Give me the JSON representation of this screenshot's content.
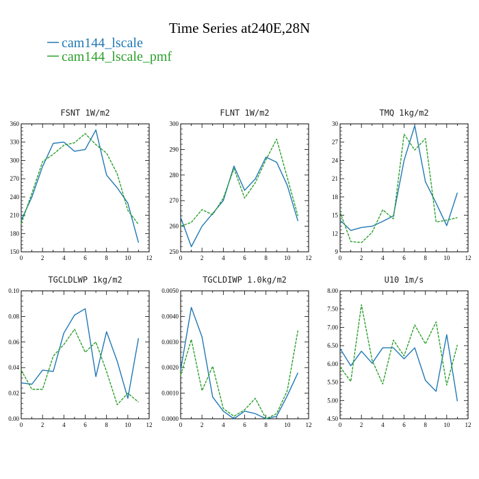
{
  "figure": {
    "title": "Time Series at240E,28N",
    "colors": {
      "cam144_lscale": "#1f77b4",
      "cam144_lscale_pmf": "#2ca02c"
    },
    "legend": [
      {
        "name": "cam144_lscale",
        "color": "#1f77b4",
        "dash": "solid"
      },
      {
        "name": "cam144_lscale_pmf",
        "color": "#2ca02c",
        "dash": "dashed"
      }
    ]
  },
  "chart_data": [
    {
      "type": "line",
      "title": "FSNT   1W/m2",
      "xlim": [
        0,
        12
      ],
      "ylim": [
        150,
        360
      ],
      "xticks": [
        "0",
        "2",
        "4",
        "6",
        "8",
        "10",
        "12"
      ],
      "yticks": [
        "150",
        "180",
        "210",
        "240",
        "270",
        "300",
        "330",
        "360"
      ],
      "x": [
        0,
        1,
        2,
        3,
        4,
        5,
        6,
        7,
        8,
        9,
        10,
        11
      ],
      "series": [
        {
          "name": "cam144_lscale",
          "values": [
            202,
            240,
            290,
            328,
            330,
            315,
            318,
            350,
            276,
            255,
            230,
            165
          ]
        },
        {
          "name": "cam144_lscale_pmf",
          "values": [
            196,
            246,
            298,
            310,
            325,
            329,
            344,
            326,
            312,
            278,
            218,
            195
          ]
        }
      ]
    },
    {
      "type": "line",
      "title": "FLNT   1W/m2",
      "xlim": [
        0,
        12
      ],
      "ylim": [
        250,
        300
      ],
      "xticks": [
        "0",
        "2",
        "4",
        "6",
        "8",
        "10",
        "12"
      ],
      "yticks": [
        "250",
        "260",
        "270",
        "280",
        "290",
        "300"
      ],
      "x": [
        0,
        1,
        2,
        3,
        4,
        5,
        6,
        7,
        8,
        9,
        10,
        11
      ],
      "series": [
        {
          "name": "cam144_lscale",
          "values": [
            263.5,
            252,
            260,
            265,
            270,
            283.5,
            274,
            278.5,
            287,
            285,
            276,
            262
          ]
        },
        {
          "name": "cam144_lscale_pmf",
          "values": [
            260,
            261.5,
            266.5,
            264.5,
            271,
            282.5,
            271,
            277,
            286,
            294,
            279,
            264
          ]
        }
      ]
    },
    {
      "type": "line",
      "title": "TMQ   1kg/m2",
      "xlim": [
        0,
        12
      ],
      "ylim": [
        9,
        30
      ],
      "xticks": [
        "0",
        "2",
        "4",
        "6",
        "8",
        "10",
        "12"
      ],
      "yticks": [
        "9",
        "12",
        "15",
        "18",
        "21",
        "24",
        "27",
        "30"
      ],
      "x": [
        0,
        1,
        2,
        3,
        4,
        5,
        6,
        7,
        8,
        9,
        10,
        11
      ],
      "series": [
        {
          "name": "cam144_lscale",
          "values": [
            14.2,
            12.5,
            13.0,
            13.2,
            14.0,
            14.9,
            24.0,
            29.7,
            20.5,
            17.0,
            13.3,
            18.7
          ]
        },
        {
          "name": "cam144_lscale_pmf",
          "values": [
            15.5,
            10.7,
            10.5,
            12.2,
            15.9,
            14.4,
            28.3,
            25.7,
            27.6,
            13.9,
            14.2,
            14.6
          ]
        }
      ]
    },
    {
      "type": "line",
      "title": "TGCLDLWP   1kg/m2",
      "xlim": [
        0,
        12
      ],
      "ylim": [
        0,
        0.1
      ],
      "xticks": [
        "0",
        "2",
        "4",
        "6",
        "8",
        "10",
        "12"
      ],
      "yticks": [
        "0.00",
        "0.02",
        "0.04",
        "0.06",
        "0.08",
        "0.10"
      ],
      "x": [
        0,
        1,
        2,
        3,
        4,
        5,
        6,
        7,
        8,
        9,
        10,
        11
      ],
      "series": [
        {
          "name": "cam144_lscale",
          "values": [
            0.028,
            0.027,
            0.038,
            0.037,
            0.067,
            0.081,
            0.086,
            0.033,
            0.068,
            0.045,
            0.016,
            0.063
          ]
        },
        {
          "name": "cam144_lscale_pmf",
          "values": [
            0.038,
            0.023,
            0.023,
            0.049,
            0.058,
            0.07,
            0.052,
            0.06,
            0.037,
            0.011,
            0.02,
            0.013
          ]
        }
      ]
    },
    {
      "type": "line",
      "title": "TGCLDIWP   1.0kg/m2",
      "xlim": [
        0,
        12
      ],
      "ylim": [
        0,
        0.005
      ],
      "xticks": [
        "0",
        "2",
        "4",
        "6",
        "8",
        "10",
        "12"
      ],
      "yticks": [
        "0.0000",
        "0.0010",
        "0.0020",
        "0.0030",
        "0.0040",
        "0.0050"
      ],
      "x": [
        0,
        1,
        2,
        3,
        4,
        5,
        6,
        7,
        8,
        9,
        10,
        11
      ],
      "series": [
        {
          "name": "cam144_lscale",
          "values": [
            0.0019,
            0.00435,
            0.0032,
            0.00085,
            0.0003,
            0.0,
            0.0003,
            0.0002,
            0.0,
            0.0001,
            0.0009,
            0.0018
          ]
        },
        {
          "name": "cam144_lscale_pmf",
          "values": [
            0.0017,
            0.0031,
            0.0011,
            0.00205,
            0.0004,
            0.0001,
            0.00035,
            0.0008,
            0.0,
            0.0002,
            0.0011,
            0.00345
          ]
        }
      ]
    },
    {
      "type": "line",
      "title": "U10   1m/s",
      "xlim": [
        0,
        12
      ],
      "ylim": [
        4.5,
        8.0
      ],
      "xticks": [
        "0",
        "2",
        "4",
        "6",
        "8",
        "10",
        "12"
      ],
      "yticks": [
        "4.50",
        "5.00",
        "5.50",
        "6.00",
        "6.50",
        "7.00",
        "7.50",
        "8.00"
      ],
      "x": [
        0,
        1,
        2,
        3,
        4,
        5,
        6,
        7,
        8,
        9,
        10,
        11
      ],
      "series": [
        {
          "name": "cam144_lscale",
          "values": [
            6.42,
            5.95,
            6.35,
            6.02,
            6.44,
            6.44,
            6.14,
            6.44,
            5.55,
            5.25,
            6.8,
            4.98
          ]
        },
        {
          "name": "cam144_lscale_pmf",
          "values": [
            5.92,
            5.52,
            7.62,
            6.1,
            5.45,
            6.65,
            6.22,
            7.07,
            6.55,
            7.15,
            5.42,
            6.52
          ]
        }
      ]
    }
  ]
}
